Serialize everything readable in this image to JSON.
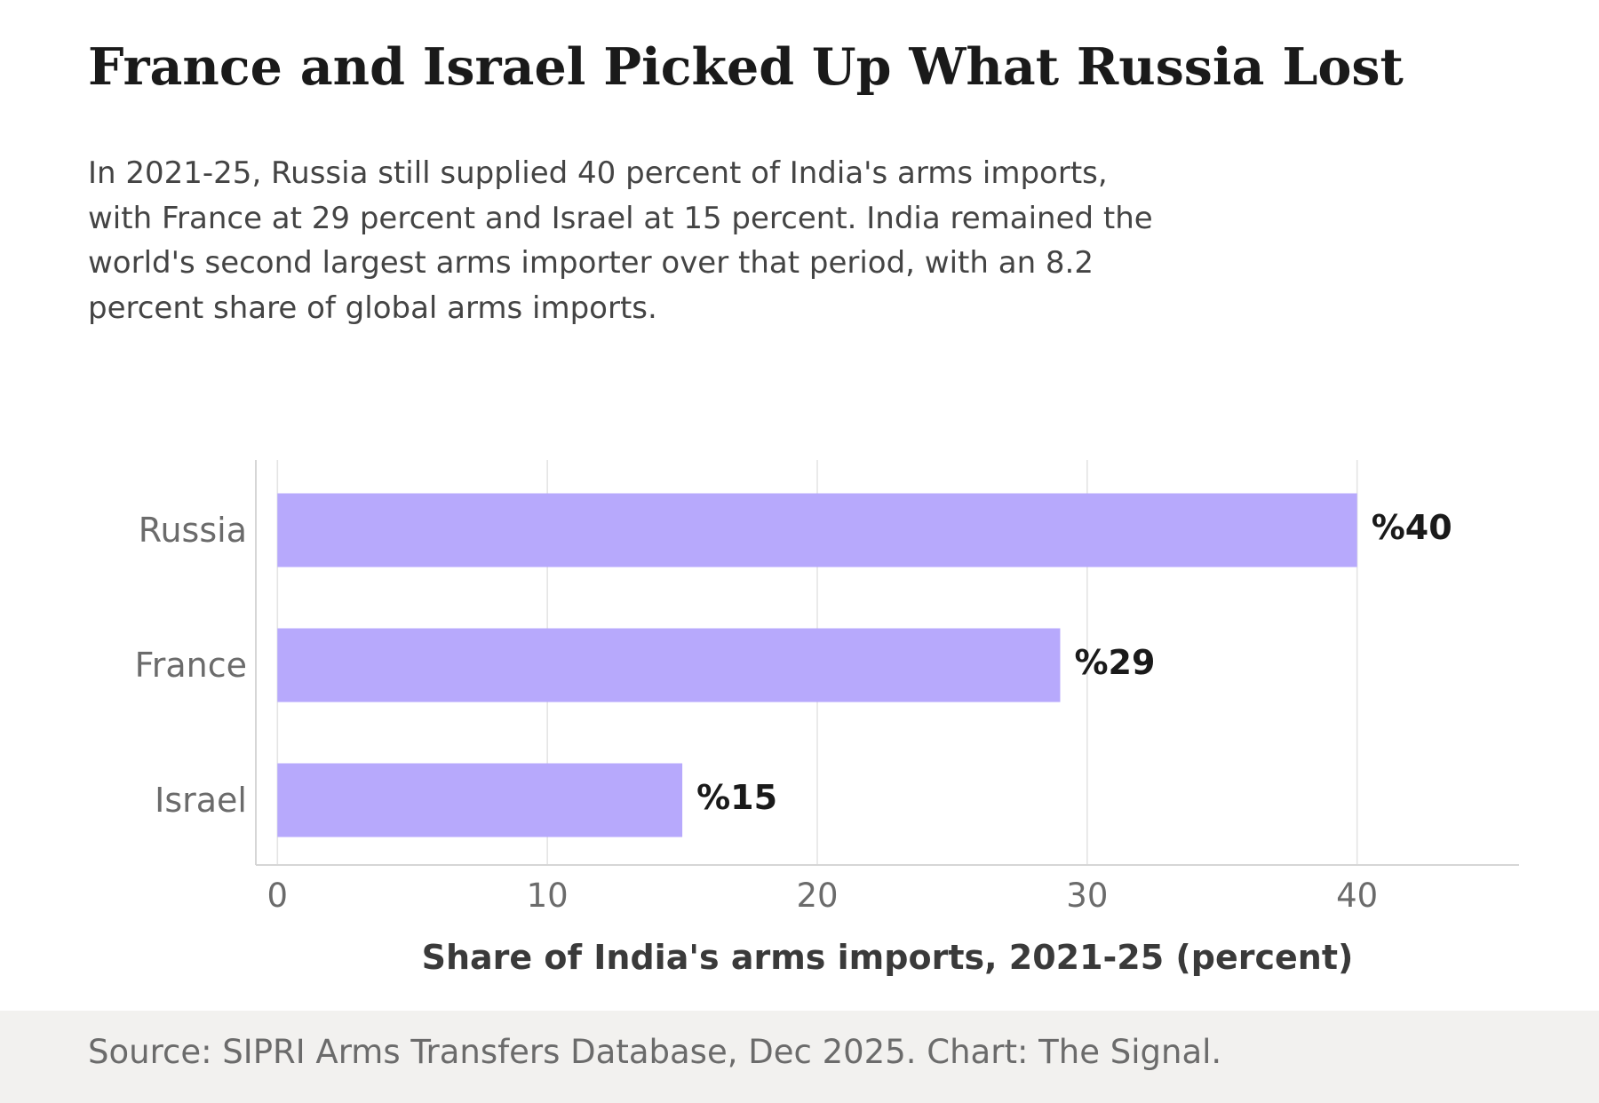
{
  "title": "France and Israel Picked Up What Russia Lost",
  "subtitle_lines": [
    "In 2021-25, Russia still supplied 40 percent of India's arms imports,",
    "with France at 29 percent and Israel at 15 percent. India remained the",
    "world's second largest arms importer over that period, with an 8.2",
    "percent share of global arms imports."
  ],
  "source": "Source: SIPRI Arms Transfers Database, Dec 2025. Chart: The Signal.",
  "colors": {
    "bar": "#b7a9fc",
    "grid": "#e4e4e4",
    "axis": "#d6d6d6",
    "tick_label": "#6b6b6b",
    "value_label": "#1a1a1a",
    "axis_title": "#3a3a3a",
    "footer_bg": "#f2f1ef"
  },
  "chart_data": {
    "type": "bar",
    "orientation": "horizontal",
    "categories": [
      "Russia",
      "France",
      "Israel"
    ],
    "values": [
      40,
      29,
      15
    ],
    "value_labels": [
      "%40",
      "%29",
      "%15"
    ],
    "xlabel": "Share of India's arms imports, 2021-25 (percent)",
    "ylabel": "",
    "xlim": [
      -0.8,
      46
    ],
    "xticks": [
      0,
      10,
      20,
      30,
      40
    ],
    "grid": true
  }
}
